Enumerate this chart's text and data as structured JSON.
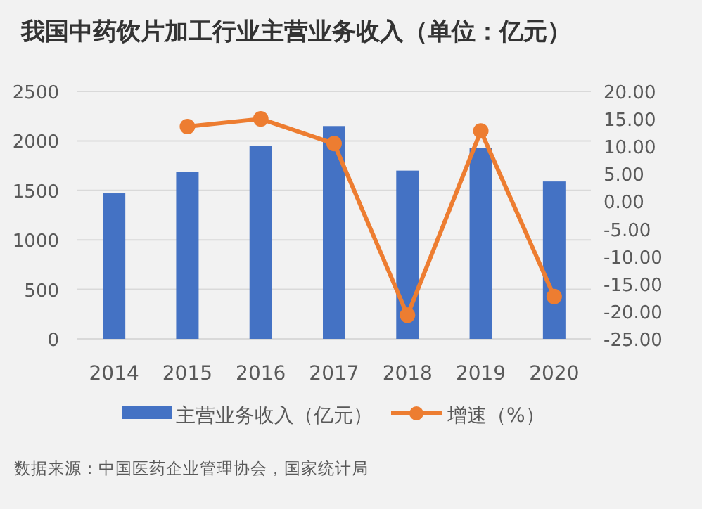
{
  "chart_data": {
    "type": "bar",
    "title": "我国中药饮片加工行业主营业务收入（单位：亿元）",
    "categories": [
      "2014",
      "2015",
      "2016",
      "2017",
      "2018",
      "2019",
      "2020"
    ],
    "series": [
      {
        "name": "主营业务收入（亿元）",
        "color": "#4472c4",
        "values": [
          1470,
          1690,
          1950,
          2150,
          1700,
          1930,
          1590
        ]
      },
      {
        "name": "增速（%）",
        "type": "line",
        "axis": "y2",
        "marker": "circle",
        "color": "#ed7d31",
        "values": [
          null,
          13.6,
          15,
          10.5,
          -20.7,
          12.8,
          -17.3
        ]
      }
    ],
    "ylim": [
      0,
      2500
    ],
    "yticks": [
      0,
      500,
      1000,
      1500,
      2000,
      2500
    ],
    "y2lim": [
      -25,
      20
    ],
    "y2ticks": [
      {
        "value": -25,
        "label": "-25.00"
      },
      {
        "value": -20,
        "label": "-20.00"
      },
      {
        "value": -15,
        "label": "-15.00"
      },
      {
        "value": -10,
        "label": "-10.00"
      },
      {
        "value": -5,
        "label": "-5.00"
      },
      {
        "value": 0,
        "label": "0.00"
      },
      {
        "value": 5,
        "label": "5.00"
      },
      {
        "value": 10,
        "label": "10.00"
      },
      {
        "value": 15,
        "label": "15.00"
      },
      {
        "value": 20,
        "label": "20.00"
      }
    ],
    "grid": "y",
    "legend": "bottom",
    "annotations": [
      "数据来源：中国医药企业管理协会，国家统计局"
    ]
  }
}
